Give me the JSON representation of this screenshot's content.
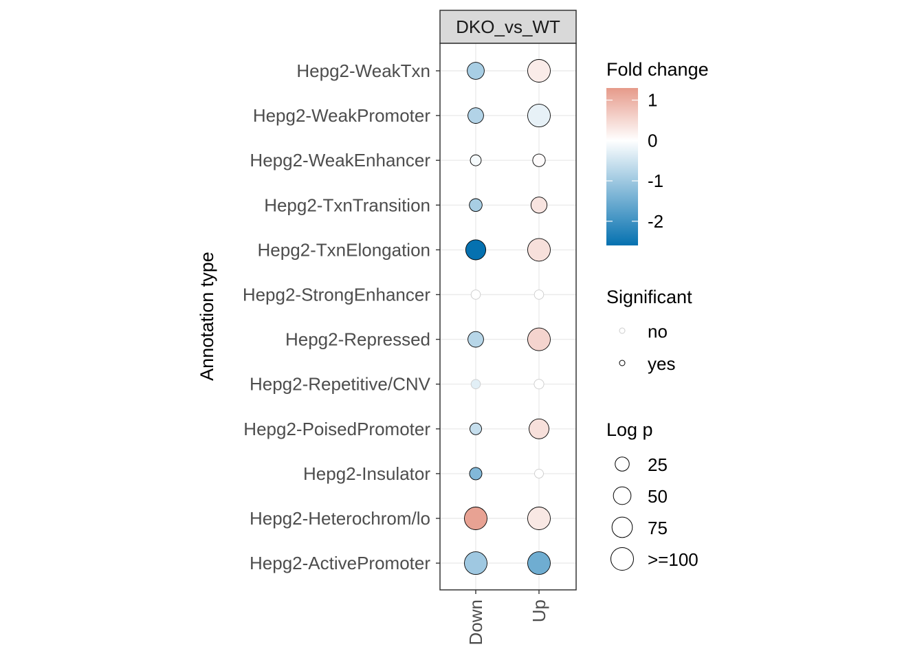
{
  "chart_data": {
    "type": "scatter",
    "facet": "DKO_vs_WT",
    "ylabel": "Annotation type",
    "x_categories": [
      "Down",
      "Up"
    ],
    "y_categories": [
      "Hepg2-WeakTxn",
      "Hepg2-WeakPromoter",
      "Hepg2-WeakEnhancer",
      "Hepg2-TxnTransition",
      "Hepg2-TxnElongation",
      "Hepg2-StrongEnhancer",
      "Hepg2-Repressed",
      "Hepg2-Repetitive/CNV",
      "Hepg2-PoisedPromoter",
      "Hepg2-Insulator",
      "Hepg2-Heterochrom/lo",
      "Hepg2-ActivePromoter"
    ],
    "points": [
      {
        "y": "Hepg2-WeakTxn",
        "x": "Down",
        "fold_change": -0.9,
        "log_p": 45,
        "significant": "yes"
      },
      {
        "y": "Hepg2-WeakTxn",
        "x": "Up",
        "fold_change": 0.25,
        "log_p": 100,
        "significant": "yes"
      },
      {
        "y": "Hepg2-WeakPromoter",
        "x": "Down",
        "fold_change": -0.8,
        "log_p": 35,
        "significant": "yes"
      },
      {
        "y": "Hepg2-WeakPromoter",
        "x": "Up",
        "fold_change": -0.25,
        "log_p": 100,
        "significant": "yes"
      },
      {
        "y": "Hepg2-WeakEnhancer",
        "x": "Down",
        "fold_change": -0.1,
        "log_p": 10,
        "significant": "yes"
      },
      {
        "y": "Hepg2-WeakEnhancer",
        "x": "Up",
        "fold_change": 0.05,
        "log_p": 17,
        "significant": "yes"
      },
      {
        "y": "Hepg2-TxnTransition",
        "x": "Down",
        "fold_change": -0.9,
        "log_p": 18,
        "significant": "yes"
      },
      {
        "y": "Hepg2-TxnTransition",
        "x": "Up",
        "fold_change": 0.35,
        "log_p": 38,
        "significant": "yes"
      },
      {
        "y": "Hepg2-TxnElongation",
        "x": "Down",
        "fold_change": -2.6,
        "log_p": 72,
        "significant": "yes"
      },
      {
        "y": "Hepg2-TxnElongation",
        "x": "Up",
        "fold_change": 0.4,
        "log_p": 100,
        "significant": "yes"
      },
      {
        "y": "Hepg2-StrongEnhancer",
        "x": "Down",
        "fold_change": 0.0,
        "log_p": 5,
        "significant": "no"
      },
      {
        "y": "Hepg2-StrongEnhancer",
        "x": "Up",
        "fold_change": 0.0,
        "log_p": 5,
        "significant": "no"
      },
      {
        "y": "Hepg2-Repressed",
        "x": "Down",
        "fold_change": -0.75,
        "log_p": 35,
        "significant": "yes"
      },
      {
        "y": "Hepg2-Repressed",
        "x": "Up",
        "fold_change": 0.55,
        "log_p": 100,
        "significant": "yes"
      },
      {
        "y": "Hepg2-Repetitive/CNV",
        "x": "Down",
        "fold_change": -0.3,
        "log_p": 5,
        "significant": "no"
      },
      {
        "y": "Hepg2-Repetitive/CNV",
        "x": "Up",
        "fold_change": 0.0,
        "log_p": 6,
        "significant": "no"
      },
      {
        "y": "Hepg2-PoisedPromoter",
        "x": "Down",
        "fold_change": -0.6,
        "log_p": 13,
        "significant": "yes"
      },
      {
        "y": "Hepg2-PoisedPromoter",
        "x": "Up",
        "fold_change": 0.4,
        "log_p": 70,
        "significant": "yes"
      },
      {
        "y": "Hepg2-Insulator",
        "x": "Down",
        "fold_change": -1.3,
        "log_p": 16,
        "significant": "yes"
      },
      {
        "y": "Hepg2-Insulator",
        "x": "Up",
        "fold_change": 0.0,
        "log_p": 4,
        "significant": "no"
      },
      {
        "y": "Hepg2-Heterochrom/lo",
        "x": "Down",
        "fold_change": 1.2,
        "log_p": 100,
        "significant": "yes"
      },
      {
        "y": "Hepg2-Heterochrom/lo",
        "x": "Up",
        "fold_change": 0.3,
        "log_p": 100,
        "significant": "yes"
      },
      {
        "y": "Hepg2-ActivePromoter",
        "x": "Down",
        "fold_change": -1.0,
        "log_p": 100,
        "significant": "yes"
      },
      {
        "y": "Hepg2-ActivePromoter",
        "x": "Up",
        "fold_change": -1.5,
        "log_p": 100,
        "significant": "yes"
      }
    ],
    "color_legend": {
      "title": "Fold change",
      "ticks": [
        "1",
        "0",
        "-1",
        "-2"
      ],
      "tick_values": [
        1,
        0,
        -1,
        -2
      ],
      "range": [
        -2.6,
        1.3
      ],
      "low_color": "#0571b0",
      "mid_color": "#ffffff",
      "high_color": "#e69a8a"
    },
    "significant_legend": {
      "title": "Significant",
      "entries": [
        "no",
        "yes"
      ],
      "stroke_colors": [
        "#cccccc",
        "#000000"
      ]
    },
    "size_legend": {
      "title": "Log p",
      "labels": [
        "25",
        "50",
        "75",
        ">=100"
      ],
      "values": [
        25,
        50,
        75,
        100
      ]
    },
    "grid": true,
    "legend_position": "right"
  }
}
